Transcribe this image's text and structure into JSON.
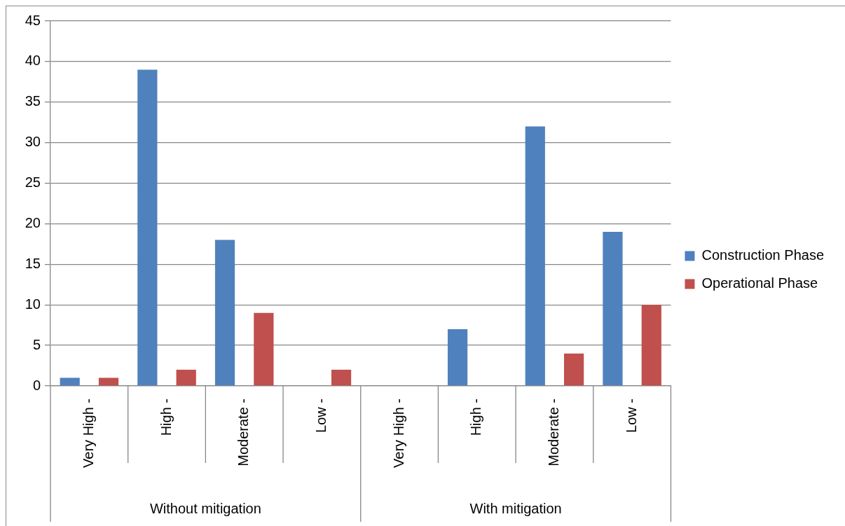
{
  "chart_data": {
    "type": "bar",
    "categories": [
      "Very High -",
      "High -",
      "Moderate -",
      "Low -",
      "Very High -",
      "High -",
      "Moderate -",
      "Low -"
    ],
    "series": [
      {
        "name": "Construction Phase",
        "color": "#4f81bd",
        "values": [
          1,
          39,
          18,
          0,
          0,
          7,
          32,
          19
        ]
      },
      {
        "name": "Operational Phase",
        "color": "#c0504d",
        "values": [
          1,
          2,
          9,
          2,
          0,
          0,
          4,
          10
        ]
      }
    ],
    "ylim": [
      0,
      45
    ],
    "yticks": [
      0,
      5,
      10,
      15,
      20,
      25,
      30,
      35,
      40,
      45
    ],
    "grid": "y",
    "legend": "right",
    "annotations": [
      "Without mitigation",
      "With mitigation"
    ]
  }
}
